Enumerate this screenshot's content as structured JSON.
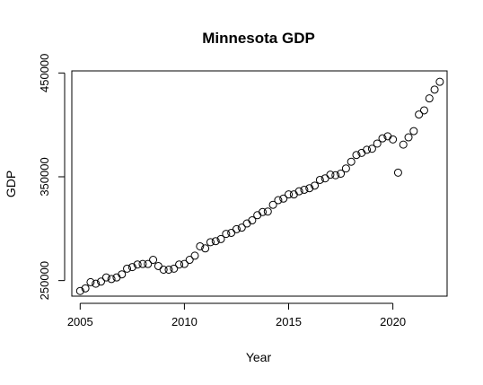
{
  "chart_data": {
    "type": "scatter",
    "title": "Minnesota GDP",
    "xlabel": "Year",
    "ylabel": "GDP",
    "xlim": [
      2004.6,
      2022.6
    ],
    "ylim": [
      235000,
      452000
    ],
    "x_ticks": [
      2005,
      2010,
      2015,
      2020
    ],
    "x_tick_labels": [
      "2005",
      "2010",
      "2015",
      "2020"
    ],
    "y_ticks": [
      250000,
      350000,
      450000
    ],
    "y_tick_labels": [
      "250000",
      "350000",
      "450000"
    ],
    "grid": false,
    "legend": "none",
    "marker": "open-circle",
    "color": "#000000",
    "x": [
      2005.0,
      2005.25,
      2005.5,
      2005.75,
      2006.0,
      2006.25,
      2006.5,
      2006.75,
      2007.0,
      2007.25,
      2007.5,
      2007.75,
      2008.0,
      2008.25,
      2008.5,
      2008.75,
      2009.0,
      2009.25,
      2009.5,
      2009.75,
      2010.0,
      2010.25,
      2010.5,
      2010.75,
      2011.0,
      2011.25,
      2011.5,
      2011.75,
      2012.0,
      2012.25,
      2012.5,
      2012.75,
      2013.0,
      2013.25,
      2013.5,
      2013.75,
      2014.0,
      2014.25,
      2014.5,
      2014.75,
      2015.0,
      2015.25,
      2015.5,
      2015.75,
      2016.0,
      2016.25,
      2016.5,
      2016.75,
      2017.0,
      2017.25,
      2017.5,
      2017.75,
      2018.0,
      2018.25,
      2018.5,
      2018.75,
      2019.0,
      2019.25,
      2019.5,
      2019.75,
      2020.0,
      2020.25,
      2020.5,
      2020.75,
      2021.0,
      2021.25,
      2021.5,
      2021.75,
      2022.0,
      2022.25
    ],
    "y": [
      240000,
      242500,
      248500,
      247000,
      249000,
      253000,
      251500,
      253000,
      256000,
      261500,
      263000,
      265500,
      266000,
      266000,
      270000,
      264000,
      260500,
      260500,
      261500,
      265500,
      266000,
      270000,
      274000,
      283000,
      281000,
      287000,
      288000,
      290000,
      295000,
      296000,
      299500,
      301000,
      305000,
      308000,
      313000,
      316000,
      316500,
      323000,
      327500,
      329000,
      333000,
      333000,
      336000,
      337500,
      339000,
      341500,
      347000,
      348500,
      352000,
      351500,
      353000,
      358000,
      364500,
      371000,
      373000,
      376000,
      377000,
      382000,
      387000,
      389000,
      386000,
      354000,
      381000,
      388000,
      394000,
      410000,
      414000,
      425500,
      434000,
      441500
    ]
  }
}
